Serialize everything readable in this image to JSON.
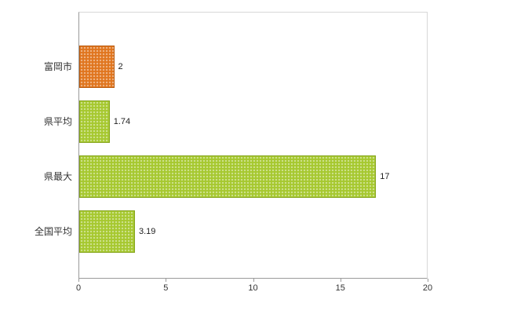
{
  "chart_data": {
    "type": "bar",
    "orientation": "horizontal",
    "title": "",
    "xlabel": "",
    "ylabel": "",
    "categories": [
      "富岡市",
      "県平均",
      "県最大",
      "全国平均"
    ],
    "values": [
      2,
      1.74,
      17,
      3.19
    ],
    "value_labels": [
      "2",
      "1.74",
      "17",
      "3.19"
    ],
    "bar_colors": [
      "#e0751e",
      "#a6c82f",
      "#a6c82f",
      "#a6c82f"
    ],
    "bar_border_colors": [
      "#bb5c10",
      "#86a51e",
      "#86a51e",
      "#86a51e"
    ],
    "xlim": [
      0,
      20
    ],
    "x_ticks": [
      0,
      5,
      10,
      15,
      20
    ],
    "x_tick_labels": [
      "0",
      "5",
      "10",
      "15",
      "20"
    ],
    "grid": false,
    "legend": "none",
    "background": "#ffffff"
  }
}
